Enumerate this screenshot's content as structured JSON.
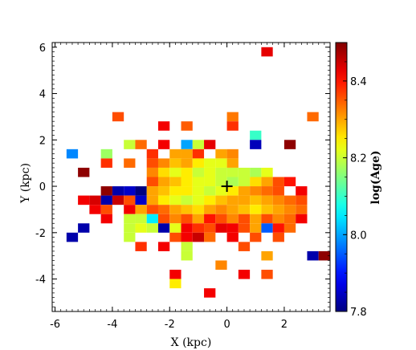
{
  "chart_data": {
    "type": "heatmap",
    "xlabel": "X (kpc)",
    "ylabel": "Y (kpc)",
    "xlim": [
      -6.1,
      3.6
    ],
    "ylim": [
      -5.4,
      6.2
    ],
    "x_ticks": [
      -6,
      -4,
      -2,
      0,
      2
    ],
    "x_tick_labels": [
      "-6",
      "-4",
      "-2",
      "0",
      "2"
    ],
    "y_ticks": [
      -4,
      -2,
      0,
      2,
      4,
      6
    ],
    "y_tick_labels": [
      "-4",
      "-2",
      "0",
      "2",
      "4",
      "6"
    ],
    "grid": false,
    "cell_size_kpc": 0.4,
    "marker": {
      "symbol": "+",
      "x": 0,
      "y": 0
    },
    "colorbar": {
      "label": "log(Age)",
      "range": [
        7.8,
        8.5
      ],
      "ticks": [
        7.8,
        8.0,
        8.2,
        8.4
      ],
      "tick_labels": [
        "7.8",
        "8.0",
        "8.2",
        "8.4"
      ],
      "colormap": "jet"
    },
    "cells": [
      {
        "x": 1.4,
        "y": 5.8,
        "value": 8.43
      },
      {
        "x": -3.8,
        "y": 3.0,
        "value": 8.36
      },
      {
        "x": 0.2,
        "y": 3.0,
        "value": 8.33
      },
      {
        "x": 3.0,
        "y": 3.0,
        "value": 8.34
      },
      {
        "x": -2.2,
        "y": 2.6,
        "value": 8.42
      },
      {
        "x": -1.4,
        "y": 2.6,
        "value": 8.35
      },
      {
        "x": 0.2,
        "y": 2.6,
        "value": 8.38
      },
      {
        "x": 1.0,
        "y": 2.2,
        "value": 8.1
      },
      {
        "x": -5.4,
        "y": 1.4,
        "value": 7.98
      },
      {
        "x": -4.2,
        "y": 1.4,
        "value": 8.17
      },
      {
        "x": -3.4,
        "y": 1.8,
        "value": 8.2
      },
      {
        "x": -3.0,
        "y": 1.8,
        "value": 8.34
      },
      {
        "x": -2.2,
        "y": 1.8,
        "value": 8.42
      },
      {
        "x": -1.4,
        "y": 1.8,
        "value": 8.0
      },
      {
        "x": -1.0,
        "y": 1.8,
        "value": 8.2
      },
      {
        "x": -0.6,
        "y": 1.8,
        "value": 8.43
      },
      {
        "x": 0.2,
        "y": 1.4,
        "value": 8.32
      },
      {
        "x": 1.0,
        "y": 1.8,
        "value": 7.84
      },
      {
        "x": 2.2,
        "y": 1.8,
        "value": 8.49
      },
      {
        "x": -5.0,
        "y": 0.6,
        "value": 8.49
      },
      {
        "x": -4.2,
        "y": 1.0,
        "value": 8.38
      },
      {
        "x": -3.4,
        "y": 1.0,
        "value": 8.34
      },
      {
        "x": -2.6,
        "y": 1.4,
        "value": 8.38
      },
      {
        "x": -1.8,
        "y": 1.4,
        "value": 8.3
      },
      {
        "x": -1.4,
        "y": 1.4,
        "value": 8.3
      },
      {
        "x": -1.0,
        "y": 1.4,
        "value": 8.38
      },
      {
        "x": -0.2,
        "y": 1.4,
        "value": 8.3
      },
      {
        "x": 1.0,
        "y": 0.6,
        "value": 8.18
      },
      {
        "x": 1.4,
        "y": 0.6,
        "value": 8.22
      },
      {
        "x": -2.6,
        "y": 1.0,
        "value": 8.36
      },
      {
        "x": -2.2,
        "y": 1.0,
        "value": 8.32
      },
      {
        "x": -1.8,
        "y": 1.0,
        "value": 8.28
      },
      {
        "x": -1.4,
        "y": 1.0,
        "value": 8.3
      },
      {
        "x": -1.0,
        "y": 1.0,
        "value": 8.25
      },
      {
        "x": -0.6,
        "y": 1.0,
        "value": 8.22
      },
      {
        "x": -0.2,
        "y": 1.0,
        "value": 8.22
      },
      {
        "x": 0.2,
        "y": 1.0,
        "value": 8.3
      },
      {
        "x": -2.6,
        "y": 0.6,
        "value": 8.32
      },
      {
        "x": -2.2,
        "y": 0.6,
        "value": 8.26
      },
      {
        "x": -1.8,
        "y": 0.6,
        "value": 8.22
      },
      {
        "x": -1.4,
        "y": 0.6,
        "value": 8.25
      },
      {
        "x": -1.0,
        "y": 0.6,
        "value": 8.2
      },
      {
        "x": -0.6,
        "y": 0.6,
        "value": 8.22
      },
      {
        "x": -0.2,
        "y": 0.6,
        "value": 8.2
      },
      {
        "x": 0.2,
        "y": 0.6,
        "value": 8.2
      },
      {
        "x": 0.6,
        "y": 0.6,
        "value": 8.2
      },
      {
        "x": -2.6,
        "y": 0.2,
        "value": 8.36
      },
      {
        "x": -2.2,
        "y": 0.2,
        "value": 8.3
      },
      {
        "x": -1.8,
        "y": 0.2,
        "value": 8.28
      },
      {
        "x": -1.4,
        "y": 0.2,
        "value": 8.25
      },
      {
        "x": -1.0,
        "y": 0.2,
        "value": 8.22
      },
      {
        "x": -0.6,
        "y": 0.2,
        "value": 8.22
      },
      {
        "x": -0.2,
        "y": 0.2,
        "value": 8.2
      },
      {
        "x": 0.2,
        "y": 0.2,
        "value": 8.18
      },
      {
        "x": 0.6,
        "y": 0.2,
        "value": 8.2
      },
      {
        "x": 1.0,
        "y": 0.2,
        "value": 8.26
      },
      {
        "x": 1.4,
        "y": 0.2,
        "value": 8.3
      },
      {
        "x": 1.8,
        "y": 0.2,
        "value": 8.36
      },
      {
        "x": 2.2,
        "y": 0.2,
        "value": 8.4
      },
      {
        "x": -4.2,
        "y": -0.2,
        "value": 8.49
      },
      {
        "x": -3.0,
        "y": -0.2,
        "value": 7.8
      },
      {
        "x": -3.4,
        "y": -0.2,
        "value": 7.85
      },
      {
        "x": -3.8,
        "y": -0.2,
        "value": 7.83
      },
      {
        "x": -2.6,
        "y": -0.2,
        "value": 8.3
      },
      {
        "x": -2.2,
        "y": -0.2,
        "value": 8.28
      },
      {
        "x": -1.8,
        "y": -0.2,
        "value": 8.25
      },
      {
        "x": -1.4,
        "y": -0.2,
        "value": 8.25
      },
      {
        "x": -1.0,
        "y": -0.2,
        "value": 8.22
      },
      {
        "x": -0.6,
        "y": -0.2,
        "value": 8.2
      },
      {
        "x": -0.2,
        "y": -0.2,
        "value": 8.22
      },
      {
        "x": 0.2,
        "y": -0.2,
        "value": 8.25
      },
      {
        "x": 0.6,
        "y": -0.2,
        "value": 8.3
      },
      {
        "x": 1.0,
        "y": -0.2,
        "value": 8.32
      },
      {
        "x": 1.4,
        "y": -0.2,
        "value": 8.34
      },
      {
        "x": 1.8,
        "y": -0.2,
        "value": 8.36
      },
      {
        "x": 2.6,
        "y": -0.2,
        "value": 8.42
      },
      {
        "x": -4.6,
        "y": -0.6,
        "value": 8.44
      },
      {
        "x": -5.0,
        "y": -0.6,
        "value": 8.42
      },
      {
        "x": -4.2,
        "y": -0.6,
        "value": 7.83
      },
      {
        "x": -3.8,
        "y": -0.6,
        "value": 8.45
      },
      {
        "x": -3.4,
        "y": -0.6,
        "value": 8.36
      },
      {
        "x": -3.0,
        "y": -0.6,
        "value": 7.85
      },
      {
        "x": -2.6,
        "y": -0.6,
        "value": 8.3
      },
      {
        "x": -2.2,
        "y": -0.6,
        "value": 8.25
      },
      {
        "x": -1.8,
        "y": -0.6,
        "value": 8.22
      },
      {
        "x": -1.4,
        "y": -0.6,
        "value": 8.2
      },
      {
        "x": -1.0,
        "y": -0.6,
        "value": 8.22
      },
      {
        "x": -0.6,
        "y": -0.6,
        "value": 8.25
      },
      {
        "x": -0.2,
        "y": -0.6,
        "value": 8.28
      },
      {
        "x": 0.2,
        "y": -0.6,
        "value": 8.3
      },
      {
        "x": 0.6,
        "y": -0.6,
        "value": 8.3
      },
      {
        "x": 1.0,
        "y": -0.6,
        "value": 8.28
      },
      {
        "x": 1.4,
        "y": -0.6,
        "value": 8.3
      },
      {
        "x": 1.8,
        "y": -0.6,
        "value": 8.32
      },
      {
        "x": 2.2,
        "y": -0.6,
        "value": 8.34
      },
      {
        "x": 2.6,
        "y": -0.6,
        "value": 8.36
      },
      {
        "x": -4.6,
        "y": -1.0,
        "value": 8.42
      },
      {
        "x": -4.2,
        "y": -1.0,
        "value": 8.36
      },
      {
        "x": -3.4,
        "y": -1.0,
        "value": 8.42
      },
      {
        "x": -3.0,
        "y": -1.0,
        "value": 8.3
      },
      {
        "x": -2.6,
        "y": -1.0,
        "value": 8.36
      },
      {
        "x": -2.2,
        "y": -1.0,
        "value": 8.34
      },
      {
        "x": -1.8,
        "y": -1.0,
        "value": 8.3
      },
      {
        "x": -1.4,
        "y": -1.0,
        "value": 8.28
      },
      {
        "x": -1.0,
        "y": -1.0,
        "value": 8.26
      },
      {
        "x": -0.6,
        "y": -1.0,
        "value": 8.3
      },
      {
        "x": -0.2,
        "y": -1.0,
        "value": 8.32
      },
      {
        "x": 0.2,
        "y": -1.0,
        "value": 8.3
      },
      {
        "x": 0.6,
        "y": -1.0,
        "value": 8.28
      },
      {
        "x": 1.0,
        "y": -1.0,
        "value": 8.25
      },
      {
        "x": 1.4,
        "y": -1.0,
        "value": 8.28
      },
      {
        "x": 1.8,
        "y": -1.0,
        "value": 8.3
      },
      {
        "x": 2.2,
        "y": -1.0,
        "value": 8.32
      },
      {
        "x": 2.6,
        "y": -1.0,
        "value": 8.34
      },
      {
        "x": -4.2,
        "y": -1.4,
        "value": 8.42
      },
      {
        "x": -3.4,
        "y": -1.4,
        "value": 8.2
      },
      {
        "x": -3.0,
        "y": -1.4,
        "value": 8.2
      },
      {
        "x": -2.6,
        "y": -1.4,
        "value": 8.05
      },
      {
        "x": -2.2,
        "y": -1.4,
        "value": 8.36
      },
      {
        "x": -1.8,
        "y": -1.4,
        "value": 8.32
      },
      {
        "x": -1.4,
        "y": -1.4,
        "value": 8.36
      },
      {
        "x": -1.0,
        "y": -1.4,
        "value": 8.3
      },
      {
        "x": -0.6,
        "y": -1.4,
        "value": 8.4
      },
      {
        "x": -0.2,
        "y": -1.4,
        "value": 8.36
      },
      {
        "x": 0.2,
        "y": -1.4,
        "value": 8.32
      },
      {
        "x": 0.6,
        "y": -1.4,
        "value": 8.36
      },
      {
        "x": 1.0,
        "y": -1.4,
        "value": 8.3
      },
      {
        "x": 1.4,
        "y": -1.4,
        "value": 8.36
      },
      {
        "x": 1.8,
        "y": -1.4,
        "value": 8.32
      },
      {
        "x": 2.2,
        "y": -1.4,
        "value": 8.34
      },
      {
        "x": 2.6,
        "y": -1.4,
        "value": 8.42
      },
      {
        "x": -5.0,
        "y": -1.8,
        "value": 7.83
      },
      {
        "x": -3.4,
        "y": -1.8,
        "value": 8.2
      },
      {
        "x": -3.0,
        "y": -1.8,
        "value": 8.22
      },
      {
        "x": -2.6,
        "y": -1.8,
        "value": 8.2
      },
      {
        "x": -2.2,
        "y": -1.8,
        "value": 7.83
      },
      {
        "x": -1.8,
        "y": -1.8,
        "value": 8.22
      },
      {
        "x": -1.4,
        "y": -1.8,
        "value": 8.42
      },
      {
        "x": -1.0,
        "y": -1.8,
        "value": 8.38
      },
      {
        "x": -0.6,
        "y": -1.8,
        "value": 8.36
      },
      {
        "x": -0.2,
        "y": -1.8,
        "value": 8.43
      },
      {
        "x": 0.2,
        "y": -1.8,
        "value": 8.42
      },
      {
        "x": 0.6,
        "y": -1.8,
        "value": 8.36
      },
      {
        "x": 1.0,
        "y": -1.8,
        "value": 8.3
      },
      {
        "x": 1.4,
        "y": -1.8,
        "value": 7.95
      },
      {
        "x": 1.8,
        "y": -1.8,
        "value": 8.4
      },
      {
        "x": 2.2,
        "y": -1.8,
        "value": 8.34
      },
      {
        "x": -5.4,
        "y": -2.2,
        "value": 7.83
      },
      {
        "x": -3.4,
        "y": -2.2,
        "value": 8.2
      },
      {
        "x": -1.8,
        "y": -2.2,
        "value": 8.36
      },
      {
        "x": -1.4,
        "y": -2.2,
        "value": 8.42
      },
      {
        "x": -1.0,
        "y": -2.2,
        "value": 8.45
      },
      {
        "x": -0.6,
        "y": -2.2,
        "value": 8.34
      },
      {
        "x": 0.2,
        "y": -2.2,
        "value": 8.42
      },
      {
        "x": 1.0,
        "y": -2.2,
        "value": 8.36
      },
      {
        "x": 1.8,
        "y": -2.2,
        "value": 8.36
      },
      {
        "x": -3.0,
        "y": -2.6,
        "value": 8.38
      },
      {
        "x": -2.2,
        "y": -2.6,
        "value": 8.42
      },
      {
        "x": -1.4,
        "y": -2.6,
        "value": 8.2
      },
      {
        "x": 0.6,
        "y": -2.6,
        "value": 8.36
      },
      {
        "x": -1.4,
        "y": -3.0,
        "value": 8.2
      },
      {
        "x": 1.4,
        "y": -3.0,
        "value": 8.3
      },
      {
        "x": 3.0,
        "y": -3.0,
        "value": 7.83
      },
      {
        "x": 3.4,
        "y": -3.0,
        "value": 8.49
      },
      {
        "x": -0.2,
        "y": -3.4,
        "value": 8.32
      },
      {
        "x": -1.8,
        "y": -3.8,
        "value": 8.42
      },
      {
        "x": 0.6,
        "y": -3.8,
        "value": 8.42
      },
      {
        "x": 1.4,
        "y": -3.8,
        "value": 8.36
      },
      {
        "x": -1.8,
        "y": -4.2,
        "value": 8.25
      },
      {
        "x": -0.6,
        "y": -4.6,
        "value": 8.42
      }
    ]
  }
}
